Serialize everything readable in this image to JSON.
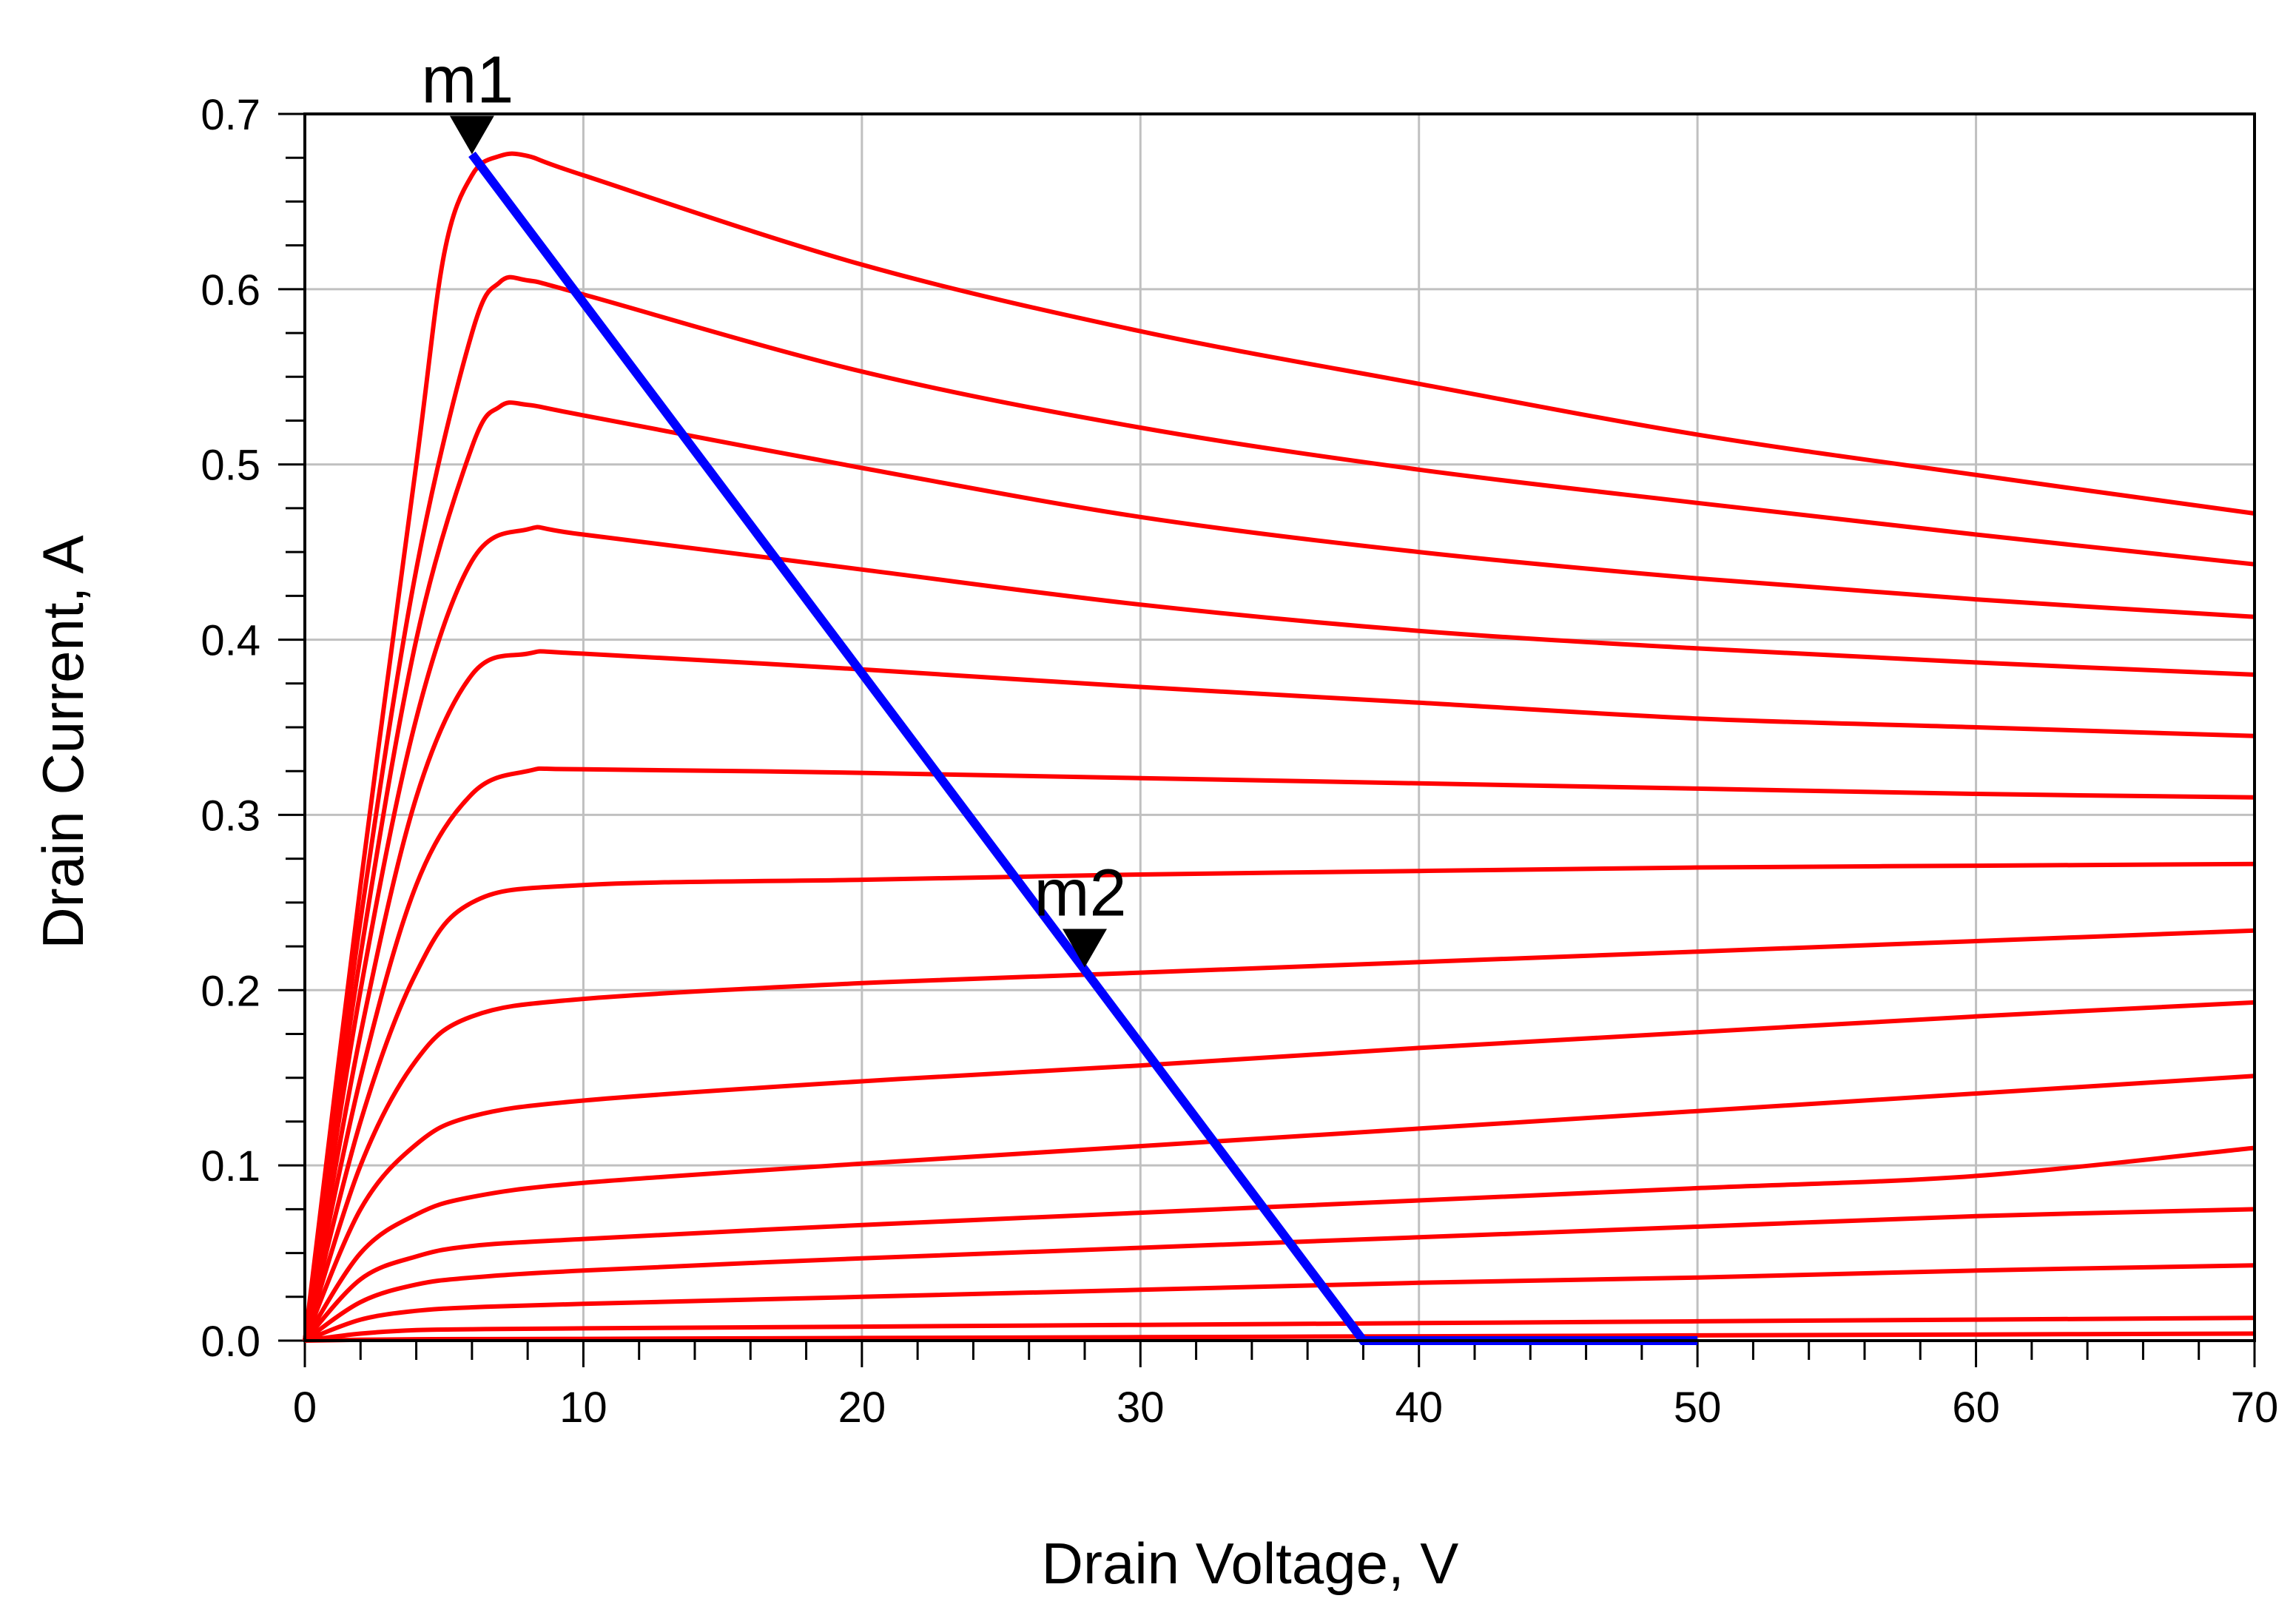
{
  "chart_data": {
    "type": "line",
    "title": "",
    "xlabel": "Drain Voltage, V",
    "ylabel": "Drain Current, A",
    "xlim": [
      0,
      70
    ],
    "ylim": [
      0,
      0.7
    ],
    "x_ticks": [
      0,
      10,
      20,
      30,
      40,
      50,
      60,
      70
    ],
    "x_tick_labels": [
      "0",
      "10",
      "20",
      "30",
      "40",
      "50",
      "60",
      "70"
    ],
    "y_ticks": [
      0,
      0.1,
      0.2,
      0.3,
      0.4,
      0.5,
      0.6,
      0.7
    ],
    "y_tick_labels": [
      "0.0",
      "0.1",
      "0.2",
      "0.3",
      "0.4",
      "0.5",
      "0.6",
      "0.7"
    ],
    "grid": true,
    "iv_curves": {
      "color": "#ff0000",
      "series": [
        {
          "name": "curve-1",
          "x": [
            0,
            2,
            4,
            6,
            10,
            20,
            30,
            40,
            50,
            60,
            70
          ],
          "y": [
            0,
            0.0005,
            0.0008,
            0.0009,
            0.001,
            0.0015,
            0.002,
            0.0025,
            0.003,
            0.0035,
            0.004
          ]
        },
        {
          "name": "curve-2",
          "x": [
            0,
            2,
            4,
            6,
            10,
            20,
            30,
            40,
            50,
            60,
            70
          ],
          "y": [
            0,
            0.004,
            0.006,
            0.0065,
            0.007,
            0.008,
            0.009,
            0.01,
            0.011,
            0.012,
            0.013
          ]
        },
        {
          "name": "curve-3",
          "x": [
            0,
            2,
            4,
            6,
            10,
            20,
            30,
            40,
            50,
            60,
            70
          ],
          "y": [
            0,
            0.012,
            0.017,
            0.019,
            0.021,
            0.025,
            0.029,
            0.033,
            0.036,
            0.04,
            0.043
          ]
        },
        {
          "name": "curve-4",
          "x": [
            0,
            2,
            4,
            6,
            10,
            20,
            30,
            40,
            50,
            60,
            70
          ],
          "y": [
            0,
            0.022,
            0.032,
            0.036,
            0.04,
            0.047,
            0.053,
            0.059,
            0.065,
            0.071,
            0.075
          ]
        },
        {
          "name": "curve-5",
          "x": [
            0,
            2,
            4,
            6,
            10,
            20,
            30,
            40,
            50,
            60,
            70
          ],
          "y": [
            0,
            0.035,
            0.048,
            0.054,
            0.058,
            0.066,
            0.073,
            0.08,
            0.087,
            0.094,
            0.11
          ]
        },
        {
          "name": "curve-6",
          "x": [
            0,
            2,
            4,
            6,
            10,
            20,
            30,
            40,
            50,
            60,
            70
          ],
          "y": [
            0,
            0.05,
            0.072,
            0.082,
            0.09,
            0.101,
            0.111,
            0.121,
            0.131,
            0.141,
            0.151
          ]
        },
        {
          "name": "curve-7",
          "x": [
            0,
            2,
            4,
            6,
            10,
            20,
            30,
            40,
            50,
            60,
            70
          ],
          "y": [
            0,
            0.075,
            0.112,
            0.128,
            0.137,
            0.148,
            0.157,
            0.167,
            0.176,
            0.185,
            0.193
          ]
        },
        {
          "name": "curve-8",
          "x": [
            0,
            2,
            4,
            6,
            10,
            20,
            30,
            40,
            50,
            60,
            70
          ],
          "y": [
            0,
            0.1,
            0.16,
            0.185,
            0.195,
            0.204,
            0.21,
            0.216,
            0.222,
            0.228,
            0.234
          ]
        },
        {
          "name": "curve-9",
          "x": [
            0,
            2,
            4,
            6,
            10,
            20,
            30,
            40,
            50,
            60,
            70
          ],
          "y": [
            0,
            0.125,
            0.21,
            0.25,
            0.26,
            0.263,
            0.266,
            0.268,
            0.27,
            0.271,
            0.272
          ]
        },
        {
          "name": "curve-10",
          "x": [
            0,
            2,
            4,
            6,
            8,
            10,
            20,
            30,
            40,
            50,
            60,
            70
          ],
          "y": [
            0,
            0.15,
            0.26,
            0.312,
            0.325,
            0.326,
            0.324,
            0.321,
            0.318,
            0.315,
            0.312,
            0.31
          ]
        },
        {
          "name": "curve-11",
          "x": [
            0,
            2,
            4,
            6,
            8,
            10,
            20,
            30,
            40,
            50,
            60,
            70
          ],
          "y": [
            0,
            0.175,
            0.31,
            0.38,
            0.392,
            0.392,
            0.383,
            0.373,
            0.364,
            0.355,
            0.35,
            0.345
          ]
        },
        {
          "name": "curve-12",
          "x": [
            0,
            2,
            4,
            6,
            8,
            10,
            20,
            30,
            40,
            50,
            60,
            70
          ],
          "y": [
            0,
            0.2,
            0.355,
            0.445,
            0.463,
            0.46,
            0.44,
            0.42,
            0.405,
            0.395,
            0.387,
            0.38
          ]
        },
        {
          "name": "curve-13",
          "x": [
            0,
            2,
            4,
            6,
            7,
            8,
            10,
            20,
            30,
            40,
            50,
            60,
            70
          ],
          "y": [
            0,
            0.22,
            0.4,
            0.51,
            0.533,
            0.534,
            0.528,
            0.498,
            0.47,
            0.45,
            0.435,
            0.423,
            0.413
          ]
        },
        {
          "name": "curve-14",
          "x": [
            0,
            2,
            4,
            6,
            7,
            8,
            10,
            20,
            30,
            40,
            50,
            60,
            70
          ],
          "y": [
            0,
            0.24,
            0.44,
            0.575,
            0.604,
            0.605,
            0.597,
            0.553,
            0.521,
            0.497,
            0.478,
            0.46,
            0.443
          ]
        },
        {
          "name": "curve-15",
          "x": [
            0,
            2,
            4,
            5,
            6,
            7,
            8,
            10,
            20,
            30,
            40,
            50,
            60,
            70
          ],
          "y": [
            0,
            0.26,
            0.5,
            0.62,
            0.665,
            0.676,
            0.676,
            0.665,
            0.614,
            0.576,
            0.546,
            0.517,
            0.494,
            0.472
          ]
        }
      ]
    },
    "load_line": {
      "name": "load-line",
      "color": "#0000ff",
      "x": [
        6,
        38,
        50
      ],
      "y": [
        0.677,
        0.0,
        0.0
      ]
    },
    "markers": [
      {
        "name": "marker-m1",
        "label": "m1",
        "x": 6,
        "y": 0.677
      },
      {
        "name": "marker-m2",
        "label": "m2",
        "x": 28,
        "y": 0.213
      }
    ]
  }
}
